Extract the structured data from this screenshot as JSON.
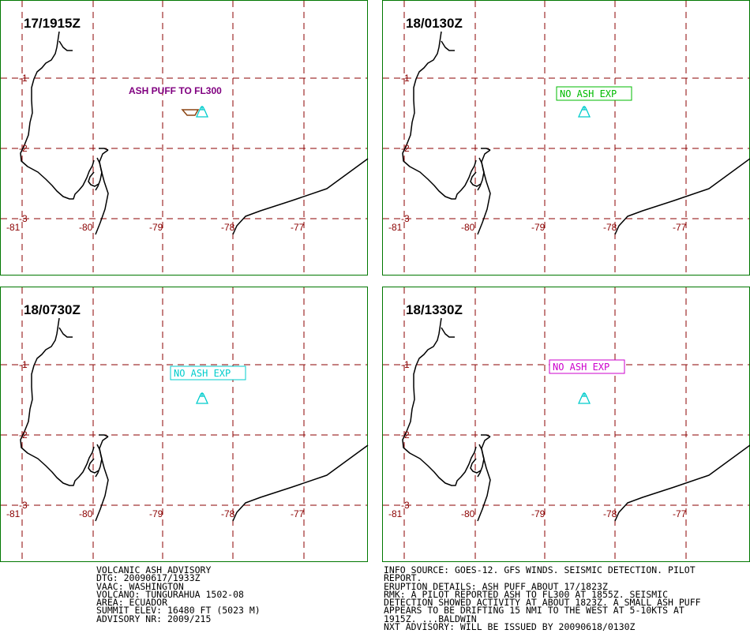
{
  "panels": [
    {
      "time": "17/1915Z",
      "label": "ASH PUFF TO FL300",
      "label_style": "plain",
      "label_color": "#800080",
      "show_ash_polygon": true
    },
    {
      "time": "18/0130Z",
      "label": "NO ASH EXP",
      "label_style": "boxed",
      "label_color": "#00bb00",
      "show_ash_polygon": false
    },
    {
      "time": "18/0730Z",
      "label": "NO ASH EXP",
      "label_style": "boxed",
      "label_color": "#00cccc",
      "show_ash_polygon": false
    },
    {
      "time": "18/1330Z",
      "label": "NO ASH EXP",
      "label_style": "boxed",
      "label_color": "#cc00cc",
      "show_ash_polygon": false
    }
  ],
  "lon_ticks": [
    "-81",
    "-80",
    "-79",
    "-78",
    "-77"
  ],
  "lat_ticks": [
    "-1",
    "-2",
    "-3"
  ],
  "colors": {
    "panel_border": "#007700",
    "grid": "#8b0000",
    "tick_label": "#8b0000",
    "coastline": "#000000",
    "volcano": "#00cccc",
    "ash_polygon": "#8b4513"
  },
  "volcano_icon": "volcano-icon",
  "advisory": {
    "lines": [
      "VOLCANIC ASH ADVISORY",
      "DTG: 20090617/1933Z",
      "VAAC: WASHINGTON",
      "VOLCANO: TUNGURAHUA 1502-08",
      "AREA: ECUADOR",
      "SUMMIT ELEV: 16480 FT (5023 M)",
      "ADVISORY NR: 2009/215"
    ]
  },
  "info": {
    "lines": [
      "INFO SOURCE: GOES-12. GFS WINDS. SEISMIC DETECTION. PILOT",
      "REPORT.",
      "ERUPTION DETAILS: ASH PUFF ABOUT 17/1823Z",
      "RMK: A PILOT REPORTED ASH TO FL300 AT 1855Z. SEISMIC",
      "DETECTION SHOWED ACTIVITY AT ABOUT 1823Z. A SMALL ASH PUFF",
      "APPEARS TO BE DRIFTING 15 NMI TO THE WEST AT 5-10KTS AT",
      "1915Z. ...BALDWIN",
      "NXT ADVISORY: WILL BE ISSUED BY 20090618/0130Z"
    ]
  }
}
